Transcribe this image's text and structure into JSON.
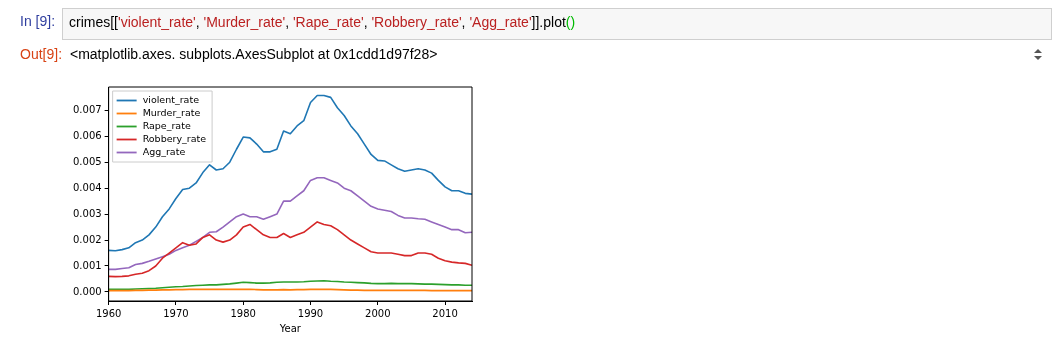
{
  "chart_data": {
    "type": "line",
    "annotations": [
      "In [9]:",
      "crimes[['violent_rate', 'Murder_rate', 'Rape_rate', 'Robbery_rate', 'Agg_rate']].plot()",
      "Out[9]:",
      "<matplotlib.axes. subplots.AxesSubplot at 0x1cdd1d97f28>"
    ],
    "xlabel": "Year",
    "x": [
      1960,
      1961,
      1962,
      1963,
      1964,
      1965,
      1966,
      1967,
      1968,
      1969,
      1970,
      1971,
      1972,
      1973,
      1974,
      1975,
      1976,
      1977,
      1978,
      1979,
      1980,
      1981,
      1982,
      1983,
      1984,
      1985,
      1986,
      1987,
      1988,
      1989,
      1990,
      1991,
      1992,
      1993,
      1994,
      1995,
      1996,
      1997,
      1998,
      1999,
      2000,
      2001,
      2002,
      2003,
      2004,
      2005,
      2006,
      2007,
      2008,
      2009,
      2010,
      2011,
      2012,
      2013,
      2014
    ],
    "series": [
      {
        "name": "violent_rate",
        "color": "#1f77b4",
        "values": [
          0.0016,
          0.00159,
          0.00163,
          0.0017,
          0.0019,
          0.002,
          0.0022,
          0.0025,
          0.0029,
          0.0032,
          0.0036,
          0.00395,
          0.004,
          0.0042,
          0.0046,
          0.0049,
          0.0047,
          0.00475,
          0.005,
          0.0055,
          0.00597,
          0.00594,
          0.0057,
          0.0054,
          0.0054,
          0.0055,
          0.0062,
          0.0061,
          0.0064,
          0.0066,
          0.0073,
          0.00757,
          0.00757,
          0.0075,
          0.0071,
          0.0068,
          0.0064,
          0.0061,
          0.0057,
          0.0053,
          0.00507,
          0.00505,
          0.0049,
          0.00475,
          0.00465,
          0.0047,
          0.00475,
          0.0047,
          0.00458,
          0.0043,
          0.00405,
          0.0039,
          0.0039,
          0.0038,
          0.00377
        ]
      },
      {
        "name": "Murder_rate",
        "color": "#ff7f0e",
        "values": [
          5e-05,
          5e-05,
          5e-05,
          5e-05,
          6e-05,
          6e-05,
          7e-05,
          7e-05,
          8e-05,
          8e-05,
          9e-05,
          9e-05,
          0.0001,
          0.0001,
          0.0001,
          0.0001,
          0.0001,
          0.0001,
          0.0001,
          0.0001,
          0.0001,
          0.0001,
          9e-05,
          8e-05,
          8e-05,
          8e-05,
          9e-05,
          8e-05,
          9e-05,
          9e-05,
          0.0001,
          0.0001,
          0.0001,
          0.0001,
          9e-05,
          8e-05,
          7e-05,
          7e-05,
          6e-05,
          6e-05,
          6e-05,
          6e-05,
          6e-05,
          6e-05,
          6e-05,
          6e-05,
          6e-05,
          6e-05,
          5e-05,
          5e-05,
          5e-05,
          5e-05,
          5e-05,
          5e-05,
          5e-05
        ]
      },
      {
        "name": "Rape_rate",
        "color": "#2ca02c",
        "values": [
          0.0001,
          0.0001,
          0.0001,
          0.0001,
          0.00011,
          0.00012,
          0.00013,
          0.00014,
          0.00016,
          0.00018,
          0.0002,
          0.00021,
          0.00023,
          0.00025,
          0.00026,
          0.00027,
          0.00027,
          0.00029,
          0.00031,
          0.00034,
          0.00037,
          0.00036,
          0.00034,
          0.00034,
          0.00035,
          0.00037,
          0.00038,
          0.00038,
          0.00038,
          0.00039,
          0.00041,
          0.00042,
          0.00043,
          0.00041,
          0.0004,
          0.00038,
          0.00037,
          0.00036,
          0.00035,
          0.00033,
          0.00032,
          0.00032,
          0.00033,
          0.00032,
          0.00032,
          0.00032,
          0.00031,
          0.0003,
          0.0003,
          0.00029,
          0.00028,
          0.00027,
          0.00027,
          0.00026,
          0.00026
        ]
      },
      {
        "name": "Robbery_rate",
        "color": "#d62728",
        "values": [
          0.0006,
          0.00059,
          0.0006,
          0.00062,
          0.00068,
          0.00072,
          0.00082,
          0.001,
          0.0013,
          0.0015,
          0.0017,
          0.0019,
          0.0018,
          0.00185,
          0.0021,
          0.0022,
          0.002,
          0.00192,
          0.002,
          0.0022,
          0.0025,
          0.0026,
          0.0024,
          0.0022,
          0.0021,
          0.0021,
          0.00225,
          0.0021,
          0.0022,
          0.0023,
          0.0025,
          0.0027,
          0.0026,
          0.00255,
          0.0024,
          0.0022,
          0.002,
          0.00185,
          0.0017,
          0.00155,
          0.0015,
          0.0015,
          0.0015,
          0.00145,
          0.0014,
          0.0014,
          0.0015,
          0.0015,
          0.00145,
          0.0013,
          0.0012,
          0.00115,
          0.00112,
          0.0011,
          0.00103
        ]
      },
      {
        "name": "Agg_rate",
        "color": "#9467bd",
        "values": [
          0.00087,
          0.00087,
          0.0009,
          0.00093,
          0.00106,
          0.0011,
          0.00118,
          0.00127,
          0.00136,
          0.00145,
          0.0016,
          0.0017,
          0.0018,
          0.00195,
          0.0021,
          0.0023,
          0.00232,
          0.0025,
          0.0027,
          0.0029,
          0.003,
          0.0029,
          0.0029,
          0.0028,
          0.0029,
          0.003,
          0.0035,
          0.0035,
          0.0037,
          0.0039,
          0.0043,
          0.0044,
          0.0044,
          0.0043,
          0.0042,
          0.004,
          0.0039,
          0.0037,
          0.0035,
          0.0033,
          0.0032,
          0.00315,
          0.0031,
          0.00295,
          0.00285,
          0.00285,
          0.00282,
          0.0028,
          0.0027,
          0.0026,
          0.0025,
          0.0024,
          0.0024,
          0.00228,
          0.0023
        ]
      }
    ],
    "xlim": [
      1960,
      2014
    ],
    "xticks": [
      1960,
      1970,
      1980,
      1990,
      2000,
      2010
    ],
    "ylim": [
      -0.00035,
      0.0079
    ],
    "yticks": [
      {
        "value": 0,
        "label": "0.000"
      },
      {
        "value": 0.001,
        "label": "0.001"
      },
      {
        "value": 0.002,
        "label": "0.002"
      },
      {
        "value": 0.003,
        "label": "0.003"
      },
      {
        "value": 0.004,
        "label": "0.004"
      },
      {
        "value": 0.005,
        "label": "0.005"
      },
      {
        "value": 0.006,
        "label": "0.006"
      },
      {
        "value": 0.007,
        "label": "0.007"
      }
    ],
    "grid": false,
    "legend": "top left",
    "marker": "none",
    "line_style": "solid"
  }
}
